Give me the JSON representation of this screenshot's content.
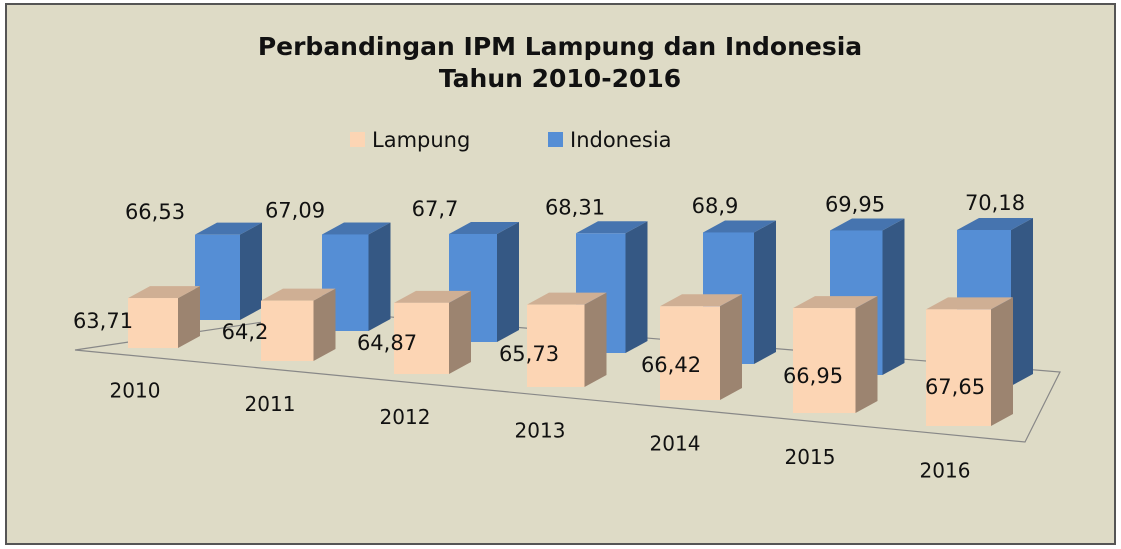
{
  "chart_data": {
    "type": "bar3d",
    "title": "Perbandingan IPM Lampung dan Indonesia",
    "subtitle": "Tahun 2010-2016",
    "categories": [
      "2010",
      "2011",
      "2012",
      "2013",
      "2014",
      "2015",
      "2016"
    ],
    "series": [
      {
        "name": "Lampung",
        "color": "#fcd5b4",
        "values": [
          63.71,
          64.2,
          64.87,
          65.73,
          66.42,
          66.95,
          67.65
        ],
        "value_labels": [
          "63,71",
          "64,2",
          "64,87",
          "65,73",
          "66,42",
          "66,95",
          "67,65"
        ]
      },
      {
        "name": "Indonesia",
        "color": "#558ed5",
        "values": [
          66.53,
          67.09,
          67.7,
          68.31,
          68.9,
          69.95,
          70.18
        ],
        "value_labels": [
          "66,53",
          "67,09",
          "67,7",
          "68,31",
          "68,9",
          "69,95",
          "70,18"
        ]
      }
    ],
    "legend": "top"
  }
}
